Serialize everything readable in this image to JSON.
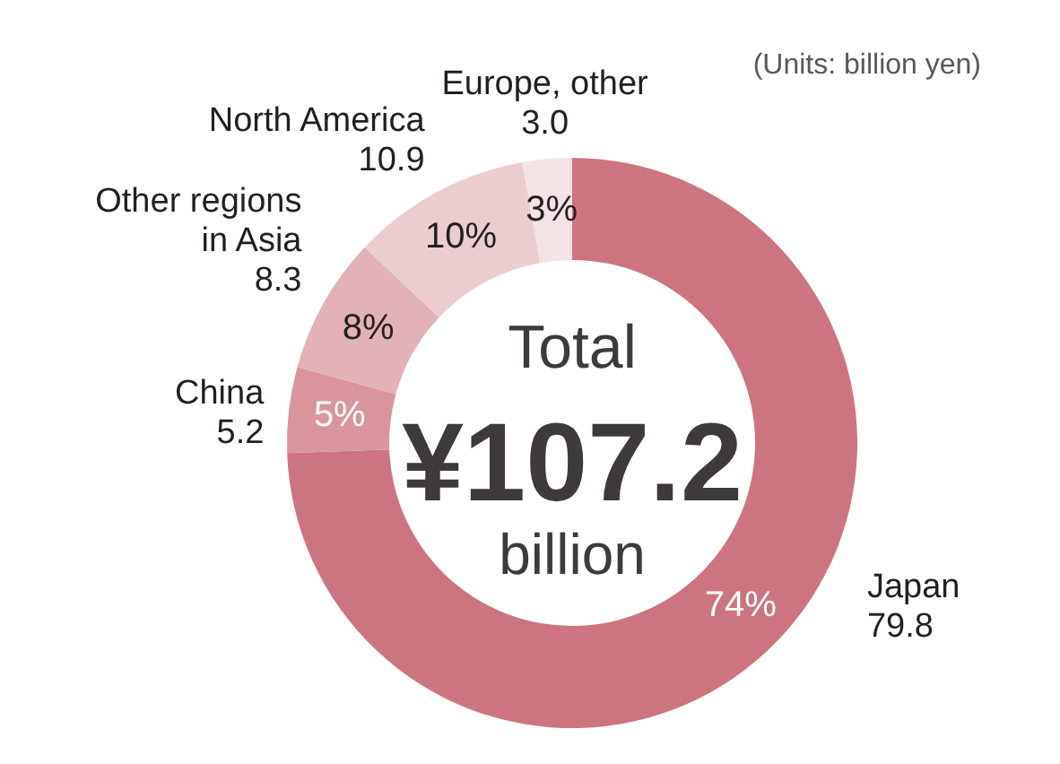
{
  "chart_data": {
    "type": "donut",
    "categories": [
      "Japan",
      "China",
      "Other regions in Asia",
      "North America",
      "Europe, other"
    ],
    "values": [
      79.8,
      5.2,
      8.3,
      10.9,
      3.0
    ],
    "colors": [
      "#cc7580",
      "#d9949c",
      "#e2b2b6",
      "#ebcdd0",
      "#f4e3e5"
    ],
    "value_labels": [
      "79.8",
      "5.2",
      "8.3",
      "10.9",
      "3.0"
    ],
    "annotations": [
      "Total",
      "¥107.2",
      "billion",
      "(Units: billion yen)",
      {
        "text": "74%",
        "x": "Japan"
      },
      {
        "text": "5%",
        "x": "China"
      },
      {
        "text": "8%",
        "x": "Other regions in Asia"
      },
      {
        "text": "10%",
        "x": "North America"
      },
      {
        "text": "3%",
        "x": "Europe, other"
      }
    ]
  }
}
